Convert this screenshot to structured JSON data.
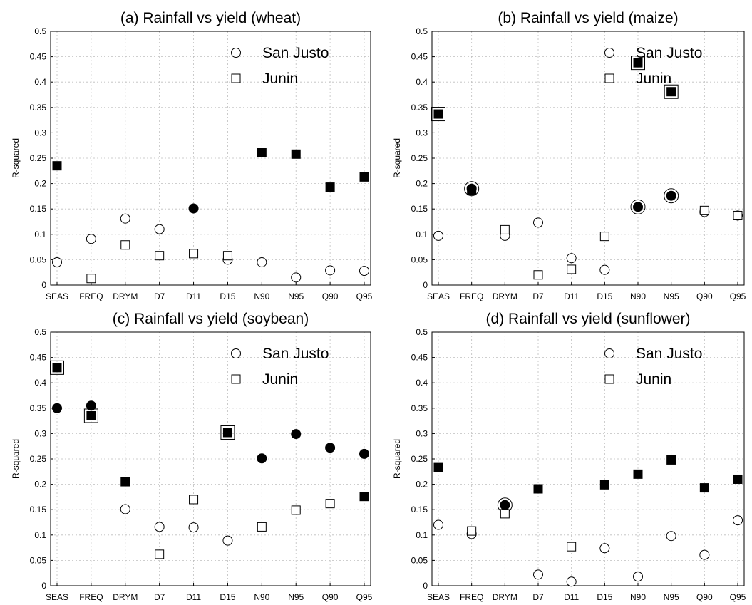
{
  "chart_data": [
    {
      "type": "scatter",
      "title": "(a) Rainfall vs yield (wheat)",
      "xlabel": "",
      "ylabel": "R-squared",
      "ylim": [
        0,
        0.5
      ],
      "yticks": [
        "0",
        "0.05",
        "0.1",
        "0.15",
        "0.2",
        "0.25",
        "0.3",
        "0.35",
        "0.4",
        "0.45",
        "0.5"
      ],
      "grid": true,
      "legend_position": "top-right",
      "categories": [
        "SEAS",
        "FREQ",
        "DRYM",
        "D7",
        "D11",
        "D15",
        "N90",
        "N95",
        "Q90",
        "Q95"
      ],
      "series": [
        {
          "name": "San Justo",
          "marker": "circle",
          "values": [
            0.045,
            0.091,
            0.131,
            0.11,
            0.151,
            0.05,
            0.045,
            0.015,
            0.029,
            0.028
          ],
          "filled": [
            false,
            false,
            false,
            false,
            true,
            false,
            false,
            false,
            false,
            false
          ],
          "boxed": [
            false,
            false,
            false,
            false,
            false,
            false,
            false,
            false,
            false,
            false
          ]
        },
        {
          "name": "Junin",
          "marker": "square",
          "values": [
            0.235,
            0.013,
            0.079,
            0.058,
            0.062,
            0.058,
            0.261,
            0.258,
            0.193,
            0.213
          ],
          "filled": [
            true,
            false,
            false,
            false,
            false,
            false,
            true,
            true,
            true,
            true
          ],
          "boxed": [
            false,
            false,
            false,
            false,
            false,
            false,
            false,
            false,
            false,
            false
          ]
        }
      ]
    },
    {
      "type": "scatter",
      "title": "(b) Rainfall vs yield (maize)",
      "xlabel": "",
      "ylabel": "R-squared",
      "ylim": [
        0,
        0.5
      ],
      "yticks": [
        "0",
        "0.05",
        "0.1",
        "0.15",
        "0.2",
        "0.25",
        "0.3",
        "0.35",
        "0.4",
        "0.45",
        "0.5"
      ],
      "grid": true,
      "legend_position": "top-right",
      "categories": [
        "SEAS",
        "FREQ",
        "DRYM",
        "D7",
        "D11",
        "D15",
        "N90",
        "N95",
        "Q90",
        "Q95"
      ],
      "series": [
        {
          "name": "San Justo",
          "marker": "circle",
          "values": [
            0.097,
            0.19,
            0.097,
            0.123,
            0.053,
            0.03,
            0.154,
            0.176,
            0.144,
            0.137
          ],
          "filled": [
            false,
            true,
            false,
            false,
            false,
            false,
            true,
            true,
            false,
            false
          ],
          "boxed": [
            false,
            true,
            false,
            false,
            false,
            false,
            true,
            true,
            false,
            false
          ]
        },
        {
          "name": "Junin",
          "marker": "square",
          "values": [
            0.337,
            0.186,
            0.109,
            0.02,
            0.031,
            0.096,
            0.438,
            0.381,
            0.147,
            0.137
          ],
          "filled": [
            true,
            true,
            false,
            false,
            false,
            false,
            true,
            true,
            false,
            false
          ],
          "boxed": [
            true,
            false,
            false,
            false,
            false,
            false,
            true,
            true,
            false,
            false
          ]
        }
      ]
    },
    {
      "type": "scatter",
      "title": "(c) Rainfall vs yield (soybean)",
      "xlabel": "",
      "ylabel": "R-squared",
      "ylim": [
        0,
        0.5
      ],
      "yticks": [
        "0",
        "0.05",
        "0.1",
        "0.15",
        "0.2",
        "0.25",
        "0.3",
        "0.35",
        "0.4",
        "0.45",
        "0.5"
      ],
      "grid": true,
      "legend_position": "top-right",
      "categories": [
        "SEAS",
        "FREQ",
        "DRYM",
        "D7",
        "D11",
        "D15",
        "N90",
        "N95",
        "Q90",
        "Q95"
      ],
      "series": [
        {
          "name": "San Justo",
          "marker": "circle",
          "values": [
            0.35,
            0.355,
            0.151,
            0.116,
            0.115,
            0.089,
            0.251,
            0.299,
            0.272,
            0.26
          ],
          "filled": [
            true,
            true,
            false,
            false,
            false,
            false,
            true,
            true,
            true,
            true
          ],
          "boxed": [
            false,
            false,
            false,
            false,
            false,
            false,
            false,
            false,
            false,
            false
          ]
        },
        {
          "name": "Junin",
          "marker": "square",
          "values": [
            0.43,
            0.335,
            0.205,
            0.062,
            0.17,
            0.302,
            0.116,
            0.149,
            0.162,
            0.176
          ],
          "filled": [
            true,
            true,
            true,
            false,
            false,
            true,
            false,
            false,
            false,
            true
          ],
          "boxed": [
            true,
            true,
            false,
            false,
            false,
            true,
            false,
            false,
            false,
            false
          ]
        }
      ]
    },
    {
      "type": "scatter",
      "title": "(d) Rainfall vs yield (sunflower)",
      "xlabel": "",
      "ylabel": "R-squared",
      "ylim": [
        0,
        0.5
      ],
      "yticks": [
        "0",
        "0.05",
        "0.1",
        "0.15",
        "0.2",
        "0.25",
        "0.3",
        "0.35",
        "0.4",
        "0.45",
        "0.5"
      ],
      "grid": true,
      "legend_position": "top-right",
      "categories": [
        "SEAS",
        "FREQ",
        "DRYM",
        "D7",
        "D11",
        "D15",
        "N90",
        "N95",
        "Q90",
        "Q95"
      ],
      "series": [
        {
          "name": "San Justo",
          "marker": "circle",
          "values": [
            0.12,
            0.102,
            0.159,
            0.022,
            0.008,
            0.074,
            0.018,
            0.098,
            0.061,
            0.129
          ],
          "filled": [
            false,
            false,
            true,
            false,
            false,
            false,
            false,
            false,
            false,
            false
          ],
          "boxed": [
            false,
            false,
            true,
            false,
            false,
            false,
            false,
            false,
            false,
            false
          ]
        },
        {
          "name": "Junin",
          "marker": "square",
          "values": [
            0.233,
            0.108,
            0.142,
            0.191,
            0.077,
            0.199,
            0.22,
            0.248,
            0.193,
            0.21
          ],
          "filled": [
            true,
            false,
            false,
            true,
            false,
            true,
            true,
            true,
            true,
            true
          ],
          "boxed": [
            false,
            false,
            false,
            false,
            false,
            false,
            false,
            false,
            false,
            false
          ]
        }
      ]
    }
  ]
}
